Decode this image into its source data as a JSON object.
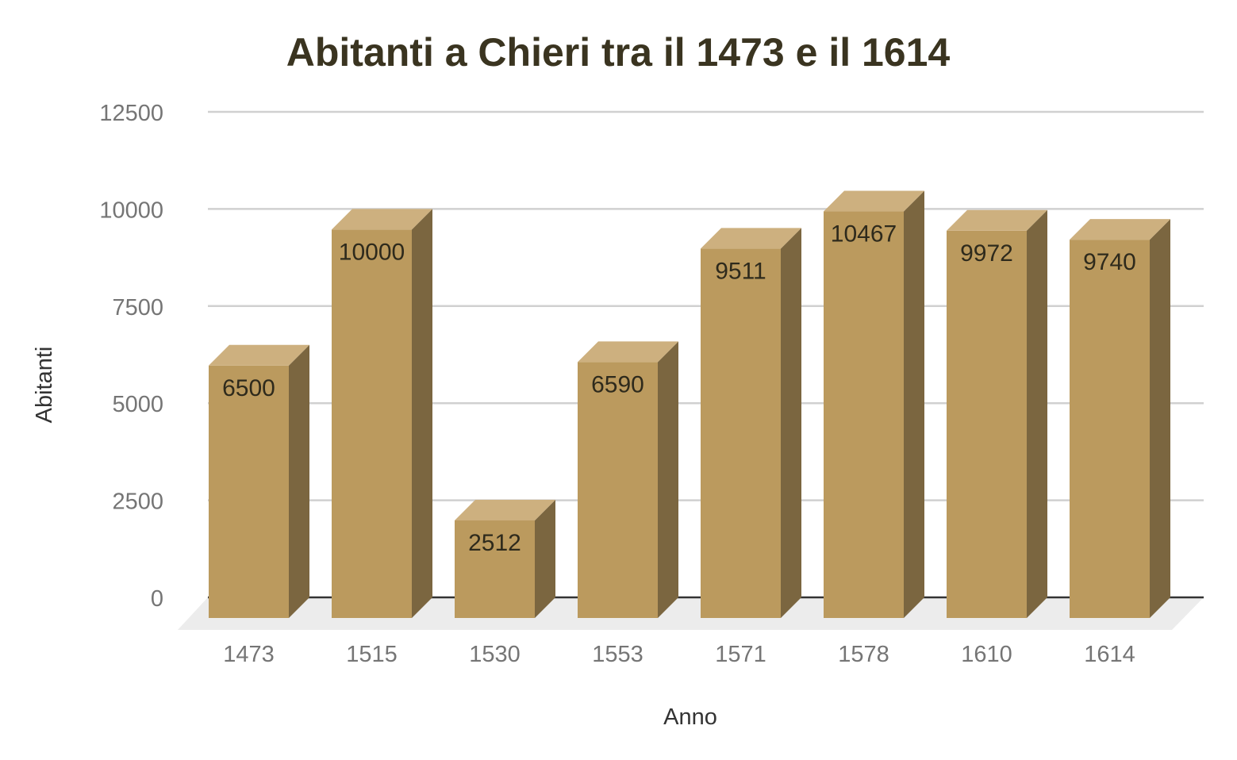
{
  "chart_data": {
    "type": "bar",
    "title": "Abitanti a Chieri tra il 1473 e il 1614",
    "xlabel": "Anno",
    "ylabel": "Abitanti",
    "categories": [
      "1473",
      "1515",
      "1530",
      "1553",
      "1571",
      "1578",
      "1610",
      "1614"
    ],
    "values": [
      6500,
      10000,
      2512,
      6590,
      9511,
      10467,
      9972,
      9740
    ],
    "ylim": [
      0,
      12500
    ],
    "yticks": [
      0,
      2500,
      5000,
      7500,
      10000,
      12500
    ],
    "grid": true,
    "legend": "none",
    "style": "3d-column",
    "colors": {
      "bar_front": "#bb9a5e",
      "bar_top": "#cdb07f",
      "bar_side": "#7b6640",
      "grid": "#d0d0d0",
      "baseline": "#333333",
      "floor": "#ececec"
    }
  }
}
